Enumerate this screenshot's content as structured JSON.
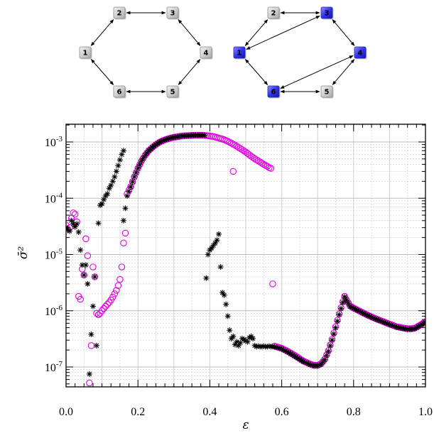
{
  "graphs": [
    {
      "nodes": [
        {
          "id": "1",
          "label": "1",
          "highlighted": false
        },
        {
          "id": "2",
          "label": "2",
          "highlighted": false
        },
        {
          "id": "3",
          "label": "3",
          "highlighted": false
        },
        {
          "id": "4",
          "label": "4",
          "highlighted": false
        },
        {
          "id": "5",
          "label": "5",
          "highlighted": false
        },
        {
          "id": "6",
          "label": "6",
          "highlighted": false
        }
      ],
      "edges": [
        [
          "1",
          "2"
        ],
        [
          "2",
          "3"
        ],
        [
          "3",
          "4"
        ],
        [
          "4",
          "5"
        ],
        [
          "5",
          "6"
        ],
        [
          "6",
          "1"
        ]
      ]
    },
    {
      "nodes": [
        {
          "id": "1",
          "label": "1",
          "highlighted": true
        },
        {
          "id": "2",
          "label": "2",
          "highlighted": false
        },
        {
          "id": "3",
          "label": "3",
          "highlighted": true
        },
        {
          "id": "4",
          "label": "4",
          "highlighted": true
        },
        {
          "id": "5",
          "label": "5",
          "highlighted": false
        },
        {
          "id": "6",
          "label": "6",
          "highlighted": true
        }
      ],
      "edges": [
        [
          "1",
          "2"
        ],
        [
          "2",
          "3"
        ],
        [
          "3",
          "4"
        ],
        [
          "4",
          "5"
        ],
        [
          "5",
          "6"
        ],
        [
          "6",
          "1"
        ],
        [
          "1",
          "3"
        ],
        [
          "4",
          "6"
        ]
      ]
    }
  ],
  "colors": {
    "node_fill": "#d4d4d4",
    "node_highlight": "#3333ee",
    "series_star": "#000000",
    "series_circle": "#e000e0",
    "grid": "#c8c8c8"
  },
  "chart_data": {
    "type": "scatter",
    "xlabel": "ε",
    "ylabel": "σ̄²",
    "xlim": [
      0.0,
      1.0
    ],
    "ylim": [
      4e-08,
      0.002
    ],
    "yscale": "log",
    "grid": true,
    "x_ticks": [
      0.0,
      0.2,
      0.4,
      0.6,
      0.8,
      1.0
    ],
    "x_tick_labels": [
      "0.0",
      "0.2",
      "0.4",
      "0.6",
      "0.8",
      "1.0"
    ],
    "y_ticks": [
      1e-07,
      1e-06,
      1e-05,
      0.0001,
      0.001
    ],
    "y_tick_labels": [
      "10-7",
      "10-6",
      "10-5",
      "10-4",
      "10-3"
    ],
    "series": [
      {
        "marker": "star",
        "segments": [
          {
            "x": [
              0.0,
              0.01,
              0.015,
              0.02,
              0.025,
              0.03,
              0.035,
              0.04,
              0.045,
              0.05,
              0.055,
              0.06,
              0.065,
              0.07,
              0.075,
              0.08,
              0.085
            ],
            "y": [
              3e-05,
              2.6e-05,
              4e-05,
              3.5e-05,
              3.1e-05,
              3.5e-05,
              2.5e-05,
              1.2e-05,
              6.5e-06,
              4.3e-06,
              6.5e-06,
              3e-06,
              7.5e-08,
              3.8e-07,
              1.2e-06,
              4e-06,
              2.4e-07
            ]
          },
          {
            "x": [
              0.09,
              0.095,
              0.1,
              0.105,
              0.11,
              0.115,
              0.12,
              0.125,
              0.13,
              0.135,
              0.14,
              0.145,
              0.15,
              0.155,
              0.16
            ],
            "y": [
              3.6e-05,
              7.5e-05,
              8e-05,
              9.5e-05,
              0.00011,
              0.00012,
              0.00015,
              0.00017,
              0.0002,
              0.00024,
              0.0003,
              0.00038,
              0.00048,
              0.0006,
              0.0007
            ]
          },
          {
            "x": [
              0.16,
              0.17,
              0.18,
              0.19,
              0.2,
              0.21,
              0.22,
              0.23,
              0.24,
              0.25,
              0.26,
              0.27,
              0.28,
              0.29,
              0.3,
              0.31,
              0.32,
              0.33,
              0.34,
              0.35,
              0.36,
              0.37,
              0.38,
              0.385
            ],
            "y": [
              4e-05,
              0.00011,
              0.00016,
              0.00024,
              0.00034,
              0.00046,
              0.00058,
              0.0007,
              0.0008,
              0.0009,
              0.00099,
              0.00106,
              0.00112,
              0.00117,
              0.00121,
              0.00124,
              0.00127,
              0.00129,
              0.0013,
              0.00131,
              0.00132,
              0.00132,
              0.00132,
              0.00131
            ]
          },
          {
            "x": [
              0.39,
              0.395,
              0.4,
              0.405,
              0.41,
              0.415,
              0.42,
              0.425,
              0.43,
              0.435,
              0.44,
              0.445,
              0.45,
              0.455,
              0.46,
              0.465,
              0.47,
              0.475,
              0.48,
              0.485,
              0.49,
              0.495,
              0.5,
              0.505,
              0.51,
              0.515,
              0.52,
              0.525,
              0.53,
              0.535,
              0.54,
              0.545,
              0.55,
              0.555,
              0.56,
              0.565,
              0.57,
              0.575
            ],
            "y": [
              3.8e-06,
              1e-05,
              1.2e-05,
              1.3e-05,
              1.45e-05,
              1.6e-05,
              1.8e-05,
              2.3e-05,
              6e-06,
              2.1e-06,
              1.9e-06,
              1.3e-06,
              8e-07,
              4.5e-07,
              3.2e-07,
              3.5e-07,
              2.5e-07,
              2.8e-07,
              2.4e-07,
              2.7e-07,
              3.2e-07,
              3.1e-07,
              2.9e-07,
              2.8e-07,
              3.3e-07,
              3.5e-07,
              3.2e-07,
              2.4e-07,
              2.3e-07,
              2.35e-07,
              2.3e-07,
              2.3e-07,
              2.35e-07,
              2.3e-07,
              2.3e-07,
              2.35e-07,
              2.3e-07,
              2.3e-07
            ]
          },
          {
            "x": [
              0.58,
              0.6,
              0.62,
              0.64,
              0.66,
              0.68,
              0.69,
              0.7,
              0.71,
              0.72,
              0.73,
              0.74,
              0.75,
              0.76,
              0.77,
              0.775
            ],
            "y": [
              2.3e-07,
              2.1e-07,
              1.8e-07,
              1.5e-07,
              1.25e-07,
              1.1e-07,
              1.05e-07,
              1.05e-07,
              1.12e-07,
              1.35e-07,
              1.9e-07,
              3e-07,
              5e-07,
              8.5e-07,
              1.4e-06,
              1.75e-06
            ]
          },
          {
            "x": [
              0.775,
              0.79,
              0.8,
              0.82,
              0.84,
              0.86,
              0.88,
              0.9,
              0.92,
              0.94,
              0.95,
              0.96,
              0.97,
              0.98,
              0.99,
              1.0
            ],
            "y": [
              1.75e-06,
              1.2e-06,
              1.1e-06,
              9.5e-07,
              8.2e-07,
              7.2e-07,
              6.4e-07,
              5.7e-07,
              5.1e-07,
              4.8e-07,
              4.7e-07,
              4.7e-07,
              4.8e-07,
              5.2e-07,
              5.7e-07,
              6.3e-07
            ]
          }
        ]
      },
      {
        "marker": "circle",
        "segments": [
          {
            "x": [
              0.0,
              0.005,
              0.01,
              0.015,
              0.02,
              0.025,
              0.03,
              0.035,
              0.04,
              0.045,
              0.05,
              0.055,
              0.06,
              0.065,
              0.07,
              0.075,
              0.08,
              0.085
            ],
            "y": [
              3.3e-05,
              2.8e-05,
              3e-05,
              4.4e-05,
              5.5e-05,
              5.2e-05,
              3.8e-05,
              1.8e-06,
              1.6e-06,
              5.5e-06,
              4.3e-06,
              1.9e-05,
              9.5e-06,
              5.2e-08,
              2.4e-07,
              6e-06,
              4e-06,
              9e-07
            ]
          },
          {
            "x": [
              0.09,
              0.095,
              0.1,
              0.105,
              0.11,
              0.115,
              0.12,
              0.125,
              0.13,
              0.135,
              0.14,
              0.145,
              0.15,
              0.155,
              0.16,
              0.165
            ],
            "y": [
              8.5e-07,
              9e-07,
              1e-06,
              1.1e-06,
              1.2e-06,
              1.3e-06,
              1.4e-06,
              1.55e-06,
              1.75e-06,
              2e-06,
              2.3e-06,
              2.8e-06,
              3.6e-06,
              6e-06,
              1.6e-05,
              2.4e-05
            ]
          },
          {
            "x": [
              0.17,
              0.18,
              0.19,
              0.2,
              0.21,
              0.22,
              0.23,
              0.24,
              0.25,
              0.26,
              0.27,
              0.28,
              0.29,
              0.3,
              0.31,
              0.32,
              0.33,
              0.34,
              0.35,
              0.36,
              0.37,
              0.38,
              0.39,
              0.4,
              0.41,
              0.42,
              0.43,
              0.44,
              0.45,
              0.46,
              0.47,
              0.48,
              0.49,
              0.5,
              0.51,
              0.52,
              0.53,
              0.54,
              0.55,
              0.56,
              0.565,
              0.57
            ],
            "y": [
              0.00012,
              0.00016,
              0.00024,
              0.00034,
              0.00046,
              0.00058,
              0.0007,
              0.0008,
              0.0009,
              0.00099,
              0.00106,
              0.00112,
              0.00117,
              0.00121,
              0.00124,
              0.00127,
              0.00129,
              0.0013,
              0.00131,
              0.00132,
              0.00132,
              0.00132,
              0.0013,
              0.00128,
              0.00125,
              0.0012,
              0.00115,
              0.0011,
              0.00103,
              0.00095,
              0.00088,
              0.0008,
              0.00073,
              0.00066,
              0.00059,
              0.00053,
              0.00048,
              0.00044,
              0.0004,
              0.00037,
              0.00035,
              0.00034
            ]
          },
          {
            "x": [
              0.465,
              0.575
            ],
            "y": [
              0.0003,
              3e-06
            ]
          },
          {
            "x": [
              0.58,
              0.6,
              0.62,
              0.64,
              0.66,
              0.68,
              0.69,
              0.7,
              0.71,
              0.72,
              0.73,
              0.74,
              0.75,
              0.76,
              0.77,
              0.775
            ],
            "y": [
              2.35e-07,
              2.15e-07,
              1.85e-07,
              1.55e-07,
              1.28e-07,
              1.12e-07,
              1.07e-07,
              1.07e-07,
              1.15e-07,
              1.38e-07,
              1.95e-07,
              3.1e-07,
              5.2e-07,
              8.8e-07,
              1.45e-06,
              1.8e-06
            ]
          },
          {
            "x": [
              0.775,
              0.79,
              0.8,
              0.82,
              0.84,
              0.86,
              0.88,
              0.9,
              0.92,
              0.94,
              0.95,
              0.96,
              0.97,
              0.98,
              0.99,
              1.0
            ],
            "y": [
              1.8e-06,
              1.22e-06,
              1.12e-06,
              9.6e-07,
              8.3e-07,
              7.3e-07,
              6.5e-07,
              5.8e-07,
              5.2e-07,
              4.9e-07,
              4.8e-07,
              4.8e-07,
              4.9e-07,
              5.3e-07,
              5.8e-07,
              6.4e-07
            ]
          }
        ]
      }
    ]
  }
}
